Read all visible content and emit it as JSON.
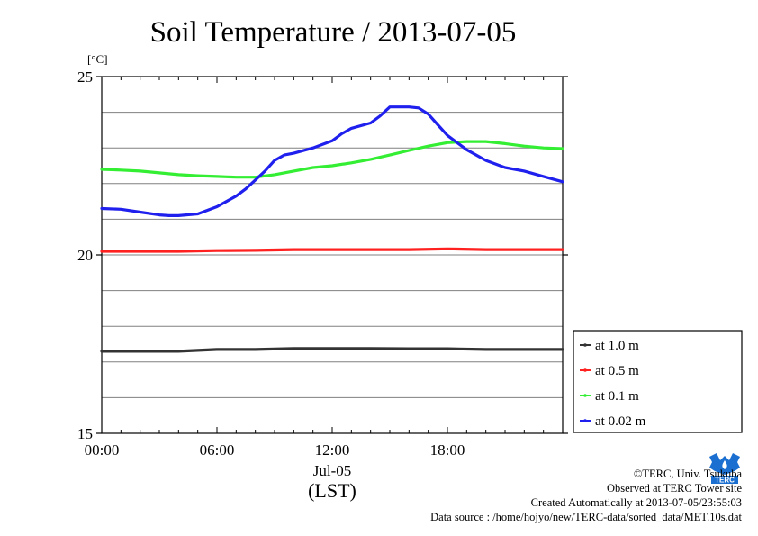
{
  "chart_data": {
    "type": "line",
    "title": "Soil Temperature / 2013-07-05",
    "ylabel_unit": "[°C]",
    "xlabel_date": "Jul-05",
    "xlabel_zone": "(LST)",
    "ylim": [
      15,
      25
    ],
    "xlim_hours": [
      0,
      24
    ],
    "y_ticks": [
      15,
      20,
      25
    ],
    "y_gridlines": [
      16,
      17,
      18,
      19,
      20,
      21,
      22,
      23,
      24
    ],
    "x_ticks": [
      {
        "hour": 0,
        "label": "00:00"
      },
      {
        "hour": 6,
        "label": "06:00"
      },
      {
        "hour": 12,
        "label": "12:00"
      },
      {
        "hour": 18,
        "label": "18:00"
      }
    ],
    "grid": true,
    "legend_position": "right-bottom",
    "series": [
      {
        "name": "at 1.0 m",
        "color": "#333333",
        "x": [
          0,
          2,
          4,
          6,
          8,
          10,
          12,
          14,
          16,
          18,
          20,
          22,
          24
        ],
        "y": [
          17.3,
          17.3,
          17.3,
          17.35,
          17.35,
          17.38,
          17.38,
          17.38,
          17.37,
          17.37,
          17.35,
          17.35,
          17.35
        ]
      },
      {
        "name": "at 0.5 m",
        "color": "#ff2020",
        "x": [
          0,
          2,
          4,
          6,
          8,
          10,
          12,
          14,
          16,
          18,
          20,
          22,
          24
        ],
        "y": [
          20.1,
          20.1,
          20.1,
          20.12,
          20.13,
          20.15,
          20.15,
          20.15,
          20.15,
          20.17,
          20.15,
          20.15,
          20.15
        ]
      },
      {
        "name": "at 0.1 m",
        "color": "#33ee33",
        "x": [
          0,
          1,
          2,
          3,
          4,
          5,
          6,
          7,
          8,
          9,
          10,
          11,
          12,
          13,
          14,
          15,
          16,
          17,
          18,
          19,
          20,
          21,
          22,
          23,
          24
        ],
        "y": [
          22.4,
          22.38,
          22.35,
          22.3,
          22.25,
          22.22,
          22.2,
          22.18,
          22.18,
          22.25,
          22.35,
          22.45,
          22.5,
          22.58,
          22.68,
          22.8,
          22.93,
          23.05,
          23.15,
          23.18,
          23.18,
          23.12,
          23.05,
          23.0,
          22.98
        ]
      },
      {
        "name": "at 0.02 m",
        "color": "#2020ee",
        "x": [
          0,
          1,
          2,
          3,
          3.5,
          4,
          5,
          6,
          7,
          7.5,
          8,
          8.5,
          9,
          9.5,
          10,
          11,
          12,
          12.5,
          13,
          14,
          14.5,
          15,
          15.5,
          16,
          16.5,
          17,
          17.5,
          18,
          19,
          20,
          21,
          22,
          23,
          24
        ],
        "y": [
          21.3,
          21.28,
          21.2,
          21.12,
          21.1,
          21.1,
          21.15,
          21.35,
          21.65,
          21.85,
          22.1,
          22.35,
          22.65,
          22.8,
          22.85,
          23.0,
          23.2,
          23.4,
          23.55,
          23.7,
          23.9,
          24.15,
          24.15,
          24.15,
          24.12,
          23.95,
          23.65,
          23.35,
          22.95,
          22.65,
          22.45,
          22.35,
          22.2,
          22.05
        ]
      }
    ]
  },
  "credits": {
    "copyright": "©TERC, Univ. Tsukuba",
    "observed": "Observed at TERC Tower site",
    "created": "Created Automatically at 2013-07-05/23:55:03",
    "source": "Data source : /home/hojyo/new/TERC-data/sorted_data/MET.10s.dat"
  },
  "logo": {
    "label": "TERC",
    "color": "#1a6fd0"
  }
}
